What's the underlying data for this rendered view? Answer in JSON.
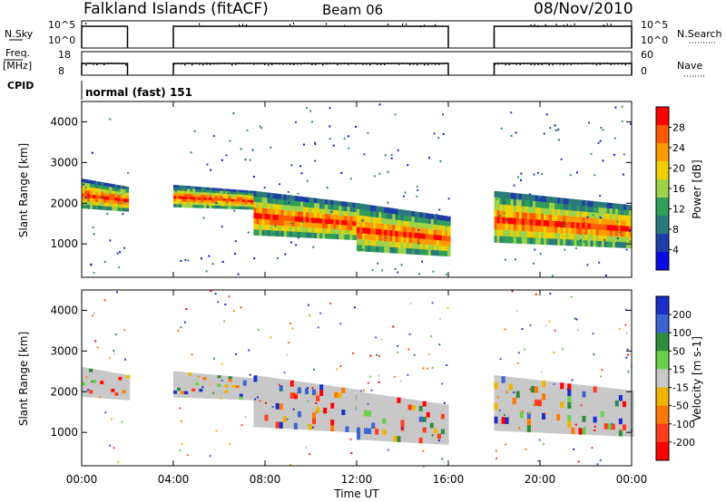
{
  "header": {
    "station": "Falkland Islands (fitACF)",
    "beam": "Beam 06",
    "date": "08/Nov/2010"
  },
  "params": {
    "nsky_label": "N.Sky",
    "nsearch_label": "N.Search",
    "nsky_ticks": [
      "10^5",
      "10^0"
    ],
    "nsearch_ticks": [
      "10^5",
      "10^0"
    ],
    "freq_label_1": "Freq.",
    "freq_label_2": "[MHz]",
    "freq_ticks": [
      "18",
      "8"
    ],
    "nave_label": "Nave",
    "nave_ticks": [
      "60",
      "0"
    ],
    "cpid_label": "CPID",
    "cpid_text": "normal (fast) 151"
  },
  "axes": {
    "xlabel": "Time UT",
    "x_ticks": [
      "00:00",
      "04:00",
      "08:00",
      "12:00",
      "16:00",
      "20:00",
      "00:00"
    ],
    "ylabel": "Slant Range [km]",
    "y_ticks": [
      "1000",
      "2000",
      "3000",
      "4000"
    ]
  },
  "colorbars": {
    "power": {
      "label": "Power [dB]",
      "ticks": [
        "28",
        "24",
        "20",
        "16",
        "12",
        "8",
        "4"
      ],
      "colors": [
        "#ff0000",
        "#ff5a00",
        "#ff9a00",
        "#f0d000",
        "#9dd24a",
        "#2e9e58",
        "#2a7a7a",
        "#1e3ea8",
        "#0a0ae6"
      ]
    },
    "velocity": {
      "label": "Velocity [m s-1]",
      "ticks": [
        "200",
        "100",
        "50",
        "15",
        "-15",
        "-50",
        "-100",
        "-200"
      ],
      "colors": [
        "#1a2ec8",
        "#3c64d0",
        "#2e8c3c",
        "#6ad04a",
        "#c8c8c8",
        "#f0b400",
        "#ff7800",
        "#ff3c1e",
        "#ff0000"
      ]
    }
  },
  "chart_data": [
    {
      "type": "line",
      "title": "N.Sky / N.Search",
      "x": [
        "00:00",
        "02:00",
        "04:00",
        "16:00",
        "18:00",
        "24:00"
      ],
      "series": [
        {
          "name": "N.Sky",
          "segments": [
            [
              "00:00",
              "02:00"
            ],
            [
              "04:00",
              "16:00"
            ],
            [
              "18:00",
              "24:00"
            ]
          ]
        }
      ],
      "ylim": [
        1,
        100000
      ],
      "yscale": "log"
    },
    {
      "type": "scatter",
      "title": "Freq. [MHz] / Nave",
      "series": [
        {
          "name": "Freq. [MHz]",
          "segments": [
            [
              "00:00",
              "02:00"
            ],
            [
              "04:00",
              "16:00"
            ],
            [
              "18:00",
              "24:00"
            ]
          ]
        }
      ],
      "ylim": [
        8,
        18
      ]
    },
    {
      "type": "heatmap",
      "title": "Power [dB]",
      "xlim": [
        "00:00",
        "24:00"
      ],
      "ylim": [
        180,
        4500
      ],
      "ylabel": "Slant Range [km]",
      "xlabel": "Time UT",
      "colorbar_range": [
        0,
        30
      ],
      "data_gaps": [
        [
          "02:00",
          "04:00"
        ],
        [
          "16:00",
          "18:00"
        ]
      ],
      "features": [
        {
          "t_start": 0.0,
          "t_end": 2.0,
          "range_top": 2600,
          "range_bottom": 1800,
          "peak_power": 28
        },
        {
          "t_start": 4.0,
          "t_end": 7.5,
          "range_top": 2450,
          "range_bottom": 1850,
          "peak_power": 28
        },
        {
          "t_start": 7.5,
          "t_end": 12.0,
          "range_top": 2300,
          "range_bottom": 1100,
          "peak_power": 28
        },
        {
          "t_start": 12.0,
          "t_end": 16.0,
          "range_top": 2000,
          "range_bottom": 700,
          "peak_power": 24
        },
        {
          "t_start": 18.0,
          "t_end": 24.0,
          "range_top": 2300,
          "range_bottom": 900,
          "peak_power": 28
        }
      ]
    },
    {
      "type": "heatmap",
      "title": "Velocity [m s-1]",
      "xlim": [
        "00:00",
        "24:00"
      ],
      "ylim": [
        180,
        4500
      ],
      "ylabel": "Slant Range [km]",
      "xlabel": "Time UT",
      "colorbar_range": [
        -200,
        200
      ],
      "data_gaps": [
        [
          "02:00",
          "04:00"
        ],
        [
          "16:00",
          "18:00"
        ]
      ],
      "features": [
        {
          "t_start": 0.0,
          "t_end": 2.0,
          "range_top": 2600,
          "range_bottom": 1800,
          "velocity": 0
        },
        {
          "t_start": 4.0,
          "t_end": 7.5,
          "range_top": 2500,
          "range_bottom": 1800,
          "velocity": 0
        },
        {
          "t_start": 7.5,
          "t_end": 12.0,
          "range_top": 2400,
          "range_bottom": 1000,
          "velocity": 0
        },
        {
          "t_start": 12.0,
          "t_end": 16.0,
          "range_top": 2000,
          "range_bottom": 700,
          "velocity": 0
        },
        {
          "t_start": 18.0,
          "t_end": 24.0,
          "range_top": 2400,
          "range_bottom": 900,
          "velocity": 0
        }
      ]
    }
  ]
}
